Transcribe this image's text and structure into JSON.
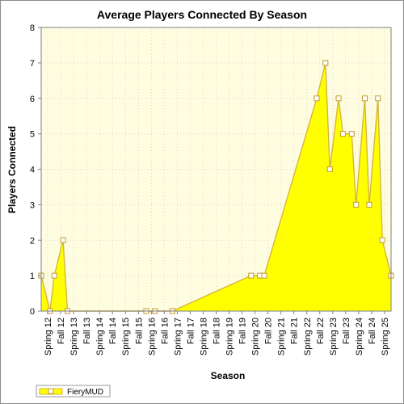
{
  "chart_data": {
    "type": "area",
    "title": "Average Players Connected By Season",
    "xlabel": "Season",
    "ylabel": "Players Connected",
    "ylim": [
      0,
      8
    ],
    "y_ticks": [
      0,
      1,
      2,
      3,
      4,
      5,
      6,
      7,
      8
    ],
    "grid": true,
    "legend_position": "bottom-left",
    "colors": {
      "plot_background": "#fffde0",
      "area_fill": "#ffff00",
      "series_line": "#d7b63a",
      "marker_fill": "#ffffff",
      "marker_stroke": "#c29b2f",
      "grid": "#d8d8c8"
    },
    "x_tick_labels": [
      "Spring 12",
      "Fall 12",
      "Spring 13",
      "Fall 13",
      "Spring 14",
      "Fall 14",
      "Spring 15",
      "Fall 15",
      "Spring 16",
      "Fall 16",
      "Spring 17",
      "Fall 17",
      "Spring 18",
      "Fall 18",
      "Spring 19",
      "Fall 19",
      "Spring 20",
      "Fall 20",
      "Spring 21",
      "Fall 21",
      "Spring 22",
      "Fall 22",
      "Spring 23",
      "Fall 23",
      "Spring 24",
      "Fall 24",
      "Spring 25"
    ],
    "series": [
      {
        "name": "FieryMUD",
        "points": [
          {
            "x": "Spring 12",
            "y": 1
          },
          {
            "x": "Spring 12",
            "y": 0
          },
          {
            "x": "Fall 12",
            "y": 1
          },
          {
            "x": "Fall 12",
            "y": 2
          },
          {
            "x": "Spring 13",
            "y": 0
          },
          {
            "x": "Spring 16",
            "y": 0
          },
          {
            "x": "Spring 16",
            "y": 0
          },
          {
            "x": "Spring 17",
            "y": 0
          },
          {
            "x": "Spring 20",
            "y": 1
          },
          {
            "x": "Spring 20",
            "y": 1
          },
          {
            "x": "Fall 20",
            "y": 1
          },
          {
            "x": "Fall 22",
            "y": 6
          },
          {
            "x": "Fall 22",
            "y": 7
          },
          {
            "x": "Spring 23",
            "y": 4
          },
          {
            "x": "Spring 23",
            "y": 6
          },
          {
            "x": "Fall 23",
            "y": 5
          },
          {
            "x": "Fall 23",
            "y": 5
          },
          {
            "x": "Spring 24",
            "y": 3
          },
          {
            "x": "Spring 24",
            "y": 6
          },
          {
            "x": "Fall 24",
            "y": 3
          },
          {
            "x": "Fall 24",
            "y": 6
          },
          {
            "x": "Spring 25",
            "y": 2
          },
          {
            "x": "Spring 25",
            "y": 1
          }
        ]
      }
    ]
  }
}
